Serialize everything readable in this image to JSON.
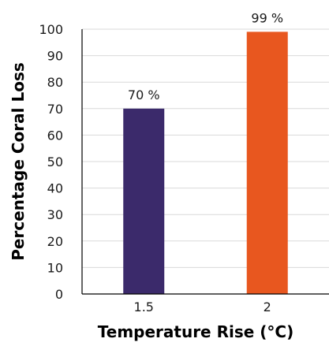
{
  "chart_data": {
    "type": "bar",
    "categories": [
      "1.5",
      "2"
    ],
    "values": [
      70,
      99
    ],
    "data_labels": [
      "70 %",
      "99 %"
    ],
    "bar_colors": [
      "#3b2a6b",
      "#e8571f"
    ],
    "xlabel": "Temperature Rise (°C)",
    "ylabel": "Percentage Coral Loss",
    "ylim": [
      0,
      100
    ],
    "yticks": [
      0,
      10,
      20,
      30,
      40,
      50,
      60,
      70,
      80,
      90,
      100
    ],
    "grid": true,
    "legend": "none"
  }
}
